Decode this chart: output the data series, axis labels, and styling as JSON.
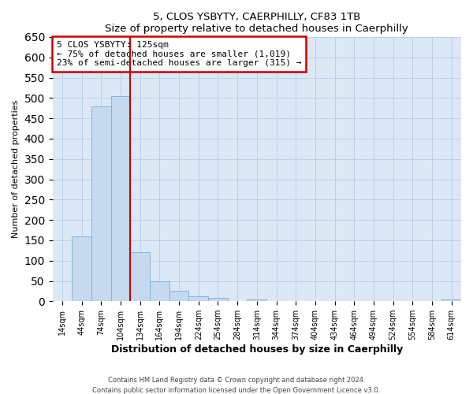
{
  "title": "5, CLOS YSBYTY, CAERPHILLY, CF83 1TB",
  "subtitle": "Size of property relative to detached houses in Caerphilly",
  "xlabel": "Distribution of detached houses by size in Caerphilly",
  "ylabel": "Number of detached properties",
  "bin_labels": [
    "14sqm",
    "44sqm",
    "74sqm",
    "104sqm",
    "134sqm",
    "164sqm",
    "194sqm",
    "224sqm",
    "254sqm",
    "284sqm",
    "314sqm",
    "344sqm",
    "374sqm",
    "404sqm",
    "434sqm",
    "464sqm",
    "494sqm",
    "524sqm",
    "554sqm",
    "584sqm",
    "614sqm"
  ],
  "bar_heights": [
    0,
    160,
    480,
    505,
    120,
    50,
    25,
    12,
    8,
    0,
    5,
    0,
    0,
    0,
    0,
    0,
    0,
    0,
    0,
    0,
    5
  ],
  "bar_color": "#c5d9ef",
  "bar_edge_color": "#7bafd4",
  "vline_color": "#cc0000",
  "ylim": [
    0,
    650
  ],
  "yticks": [
    0,
    50,
    100,
    150,
    200,
    250,
    300,
    350,
    400,
    450,
    500,
    550,
    600,
    650
  ],
  "annotation_title": "5 CLOS YSBYTY: 125sqm",
  "annotation_line1": "← 75% of detached houses are smaller (1,019)",
  "annotation_line2": "23% of semi-detached houses are larger (315) →",
  "annotation_box_color": "#cc0000",
  "footer_line1": "Contains HM Land Registry data © Crown copyright and database right 2024.",
  "footer_line2": "Contains public sector information licensed under the Open Government Licence v3.0.",
  "background_color": "#ffffff",
  "plot_bg_color": "#dce8f5",
  "grid_color": "#b0c8e0"
}
